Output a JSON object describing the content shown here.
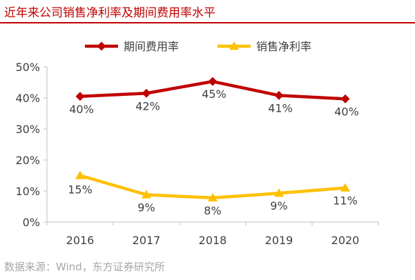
{
  "title": "近年来公司销售净利率及期间费用率水平",
  "source": "数据来源：Wind，东方证券研究所",
  "chart_data": {
    "type": "line",
    "categories": [
      "2016",
      "2017",
      "2018",
      "2019",
      "2020"
    ],
    "ylim": [
      0,
      50
    ],
    "yticks": [
      0,
      10,
      20,
      30,
      40,
      50
    ],
    "ytick_labels": [
      "0%",
      "10%",
      "20%",
      "30%",
      "40%",
      "50%"
    ],
    "grid": false,
    "legend_position": "top",
    "series": [
      {
        "name": "期间费用率",
        "color": "#c00000",
        "marker": "diamond",
        "values": [
          40.5,
          41.5,
          45.3,
          40.8,
          39.7
        ],
        "labels": [
          "40%",
          "42%",
          "45%",
          "41%",
          "40%"
        ]
      },
      {
        "name": "销售净利率",
        "color": "#ffc000",
        "marker": "triangle",
        "values": [
          15.0,
          8.8,
          7.8,
          9.3,
          11.0
        ],
        "labels": [
          "15%",
          "9%",
          "8%",
          "9%",
          "11%"
        ]
      }
    ]
  }
}
